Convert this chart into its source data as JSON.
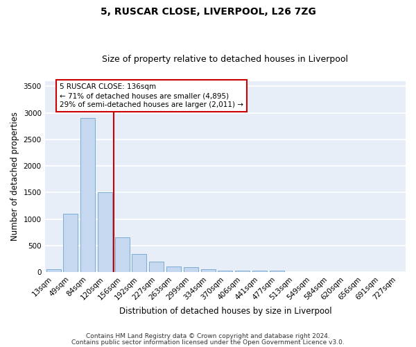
{
  "title1": "5, RUSCAR CLOSE, LIVERPOOL, L26 7ZG",
  "title2": "Size of property relative to detached houses in Liverpool",
  "xlabel": "Distribution of detached houses by size in Liverpool",
  "ylabel": "Number of detached properties",
  "footnote1": "Contains HM Land Registry data © Crown copyright and database right 2024.",
  "footnote2": "Contains public sector information licensed under the Open Government Licence v3.0.",
  "categories": [
    "13sqm",
    "49sqm",
    "84sqm",
    "120sqm",
    "156sqm",
    "192sqm",
    "227sqm",
    "263sqm",
    "299sqm",
    "334sqm",
    "370sqm",
    "406sqm",
    "441sqm",
    "477sqm",
    "513sqm",
    "549sqm",
    "584sqm",
    "620sqm",
    "656sqm",
    "691sqm",
    "727sqm"
  ],
  "values": [
    50,
    1100,
    2900,
    1500,
    650,
    340,
    190,
    110,
    90,
    50,
    30,
    30,
    30,
    30,
    0,
    0,
    0,
    0,
    0,
    0,
    0
  ],
  "bar_color": "#c5d8ef",
  "bar_edge_color": "#7aadd4",
  "vline_x": 3.5,
  "vline_color": "#cc0000",
  "annotation_text": "5 RUSCAR CLOSE: 136sqm\n← 71% of detached houses are smaller (4,895)\n29% of semi-detached houses are larger (2,011) →",
  "annotation_box_color": "white",
  "annotation_box_edge": "#cc0000",
  "ylim": [
    0,
    3600
  ],
  "yticks": [
    0,
    500,
    1000,
    1500,
    2000,
    2500,
    3000,
    3500
  ],
  "background_color": "#e8eef8",
  "grid_color": "#ffffff",
  "title1_fontsize": 10,
  "title2_fontsize": 9,
  "xlabel_fontsize": 8.5,
  "ylabel_fontsize": 8.5,
  "tick_fontsize": 7.5,
  "annotation_fontsize": 7.5,
  "footnote_fontsize": 6.5
}
